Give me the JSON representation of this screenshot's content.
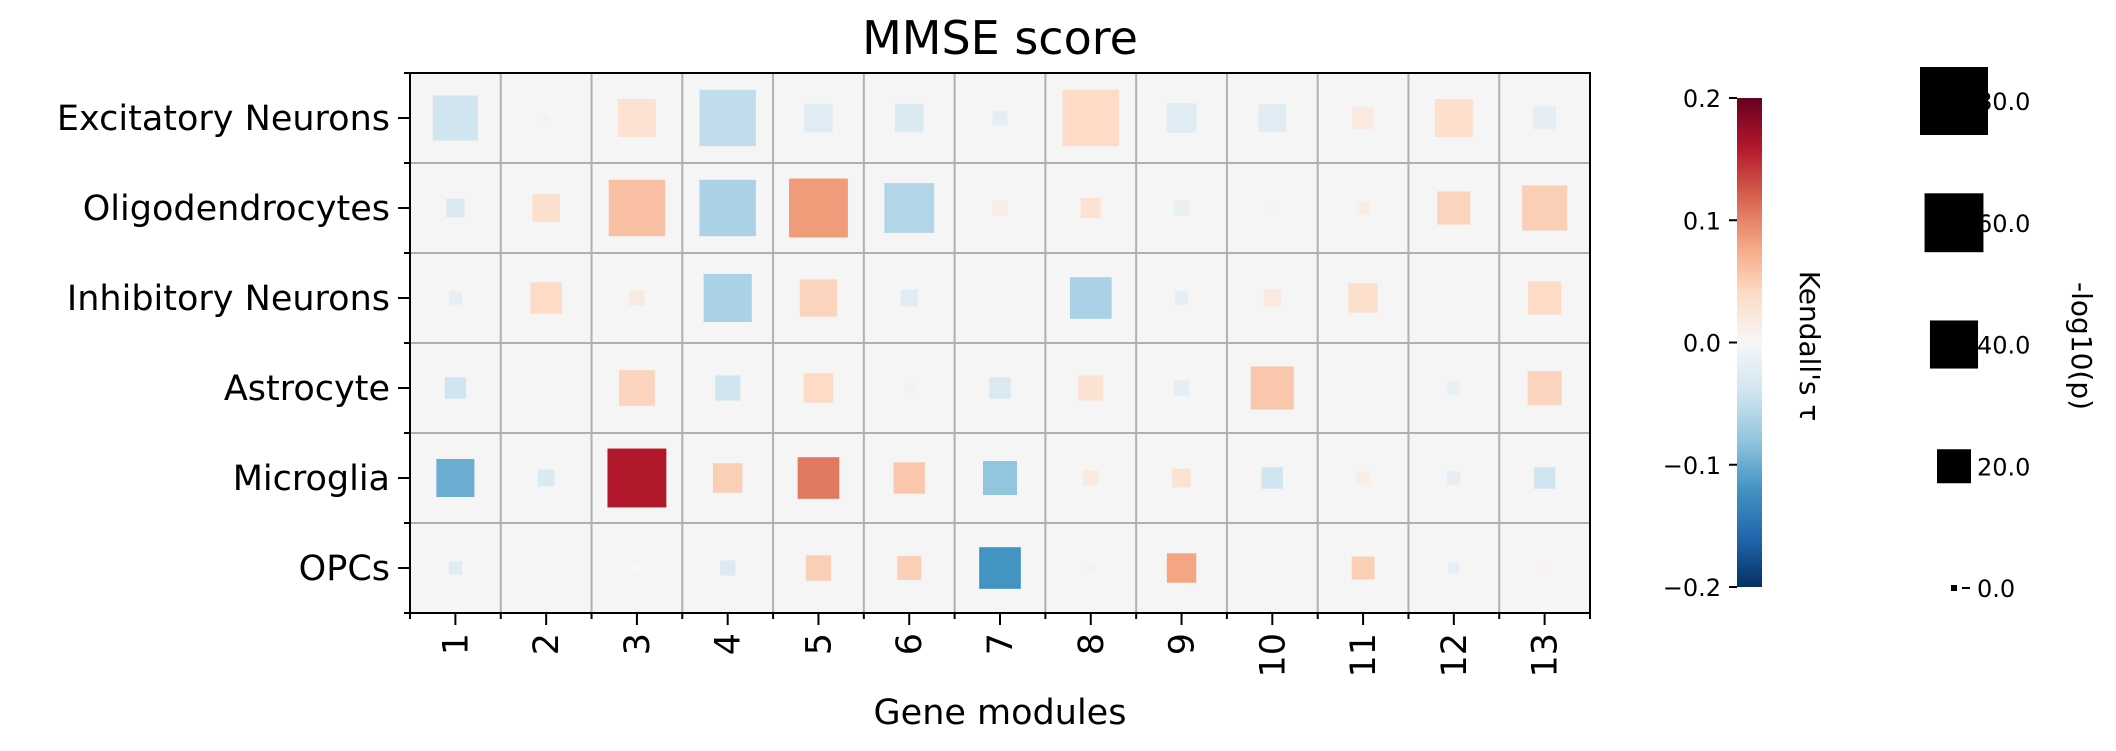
{
  "chart_data": {
    "type": "heatmap",
    "title": "MMSE score",
    "xlabel": "Gene modules",
    "ylabel": "",
    "categories": [
      "1",
      "2",
      "3",
      "4",
      "5",
      "6",
      "7",
      "8",
      "9",
      "10",
      "11",
      "12",
      "13"
    ],
    "rows": [
      "Excitatory Neurons",
      "Oligodendrocytes",
      "Inhibitory Neurons",
      "Astrocyte",
      "Microglia",
      "OPCs"
    ],
    "tau": [
      [
        -0.04,
        0.01,
        0.03,
        -0.05,
        -0.025,
        -0.03,
        -0.02,
        0.04,
        -0.025,
        -0.025,
        0.02,
        0.035,
        -0.02
      ],
      [
        -0.03,
        0.035,
        0.06,
        -0.065,
        0.085,
        -0.06,
        0.015,
        0.03,
        -0.015,
        -0.01,
        0.015,
        0.045,
        0.05
      ],
      [
        -0.02,
        0.04,
        0.02,
        -0.065,
        0.045,
        -0.025,
        0.0,
        -0.065,
        -0.02,
        0.02,
        0.035,
        0.0,
        0.04
      ],
      [
        -0.04,
        0.0,
        0.045,
        -0.04,
        0.04,
        -0.01,
        -0.03,
        0.03,
        -0.02,
        0.055,
        0.0,
        -0.015,
        0.045
      ],
      [
        -0.1,
        -0.03,
        0.16,
        0.05,
        0.105,
        0.055,
        -0.08,
        0.02,
        0.03,
        -0.04,
        0.015,
        -0.02,
        -0.04
      ],
      [
        -0.025,
        0.0,
        0.0,
        -0.03,
        0.05,
        0.05,
        -0.12,
        0.01,
        0.08,
        0.0,
        0.05,
        -0.02,
        0.01
      ]
    ],
    "neg_log10_p": [
      [
        35,
        1,
        25,
        55,
        14,
        14,
        4,
        55,
        15,
        13,
        8,
        25,
        9
      ],
      [
        6,
        13,
        55,
        55,
        60,
        43,
        4,
        7,
        4,
        1,
        3,
        19,
        35
      ],
      [
        3,
        17,
        4,
        40,
        24,
        5,
        0,
        30,
        3,
        5,
        15,
        0,
        19
      ],
      [
        8,
        0,
        22,
        11,
        15,
        2,
        8,
        11,
        4,
        32,
        0,
        3,
        20
      ],
      [
        25,
        5,
        60,
        15,
        30,
        17,
        20,
        4,
        6,
        8,
        3,
        3,
        8
      ],
      [
        3,
        0,
        1,
        4,
        11,
        10,
        30,
        1,
        15,
        0,
        9,
        2,
        1
      ]
    ],
    "colorbar": {
      "label": "Kendall's τ",
      "range": [
        -0.2,
        0.2
      ],
      "ticks": [
        "0.2",
        "0.1",
        "0.0",
        "−0.1",
        "−0.2"
      ],
      "tick_values": [
        0.2,
        0.1,
        0.0,
        -0.1,
        -0.2
      ],
      "colormap": "RdBu_r"
    },
    "size_legend": {
      "label": "-log10(p)",
      "ticks": [
        "80.0",
        "60.0",
        "40.0",
        "20.0",
        "0.0"
      ],
      "tick_values": [
        80,
        60,
        40,
        20,
        0
      ]
    },
    "grid": true
  }
}
